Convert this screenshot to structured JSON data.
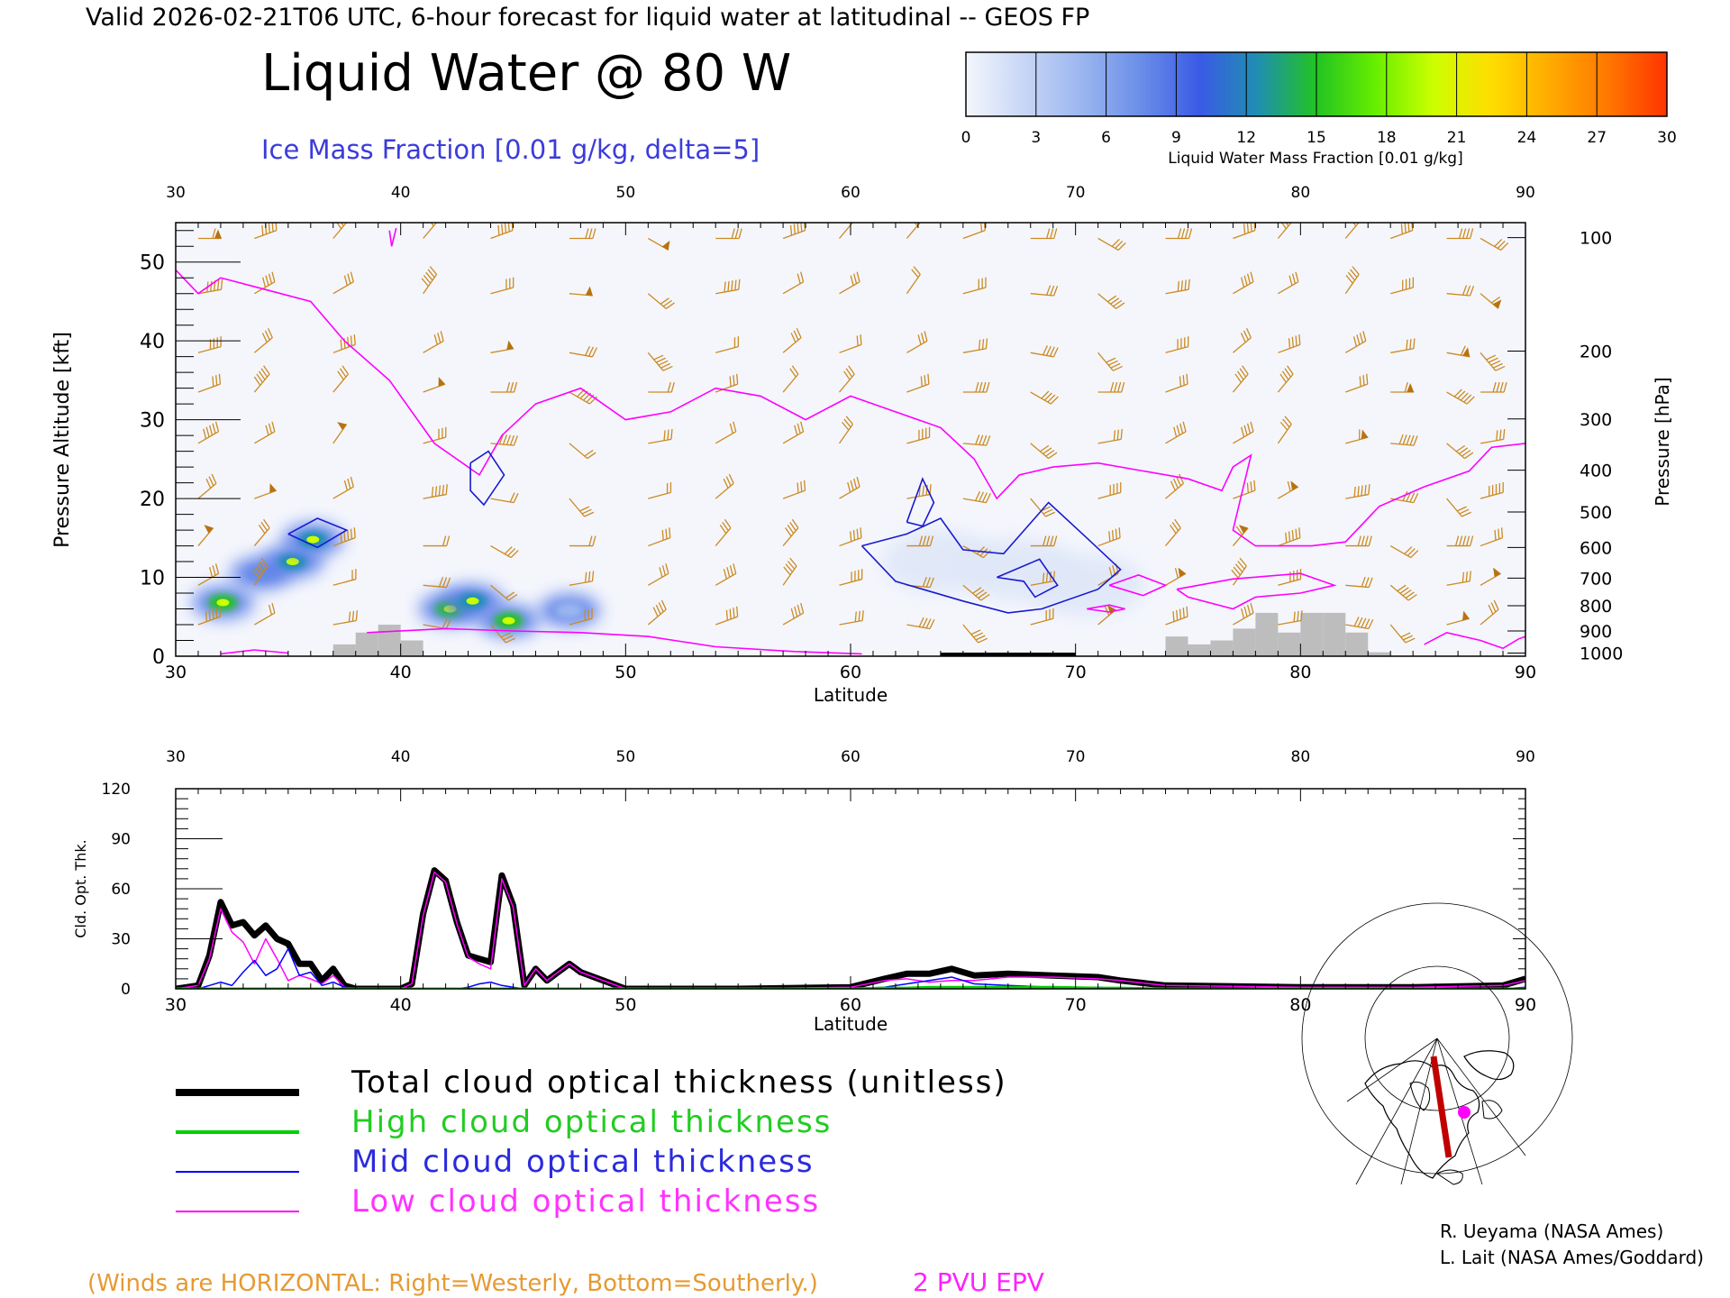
{
  "header": {
    "valid_line": "Valid 2026-02-21T06 UTC, 6-hour forecast for liquid water at latitudinal -- GEOS FP",
    "title": "Liquid Water @ 80 W",
    "subtitle": "Ice Mass Fraction [0.01 g/kg, delta=5]"
  },
  "colorbar": {
    "ticks": [
      "0",
      "3",
      "6",
      "9",
      "12",
      "15",
      "18",
      "21",
      "24",
      "27",
      "30"
    ],
    "label": "Liquid Water Mass Fraction [0.01 g/kg]",
    "colors": [
      "#f4f6fc",
      "#c7d6f6",
      "#9ab5f0",
      "#6a8ee8",
      "#3a5ae6",
      "#1f8fb0",
      "#22c322",
      "#66ee00",
      "#ccff00",
      "#ffdd00",
      "#ffaa00",
      "#ff7700",
      "#ff3300"
    ]
  },
  "chart_data": [
    {
      "type": "heatmap",
      "name": "cross-section",
      "xlabel": "Latitude",
      "ylabel": "Pressure Altitude [kft]",
      "y2label": "Pressure [hPa]",
      "xlim": [
        30,
        90
      ],
      "ylim": [
        0,
        55
      ],
      "x_ticks": [
        "30",
        "40",
        "50",
        "60",
        "70",
        "80",
        "90"
      ],
      "y_ticks": [
        "0",
        "10",
        "20",
        "30",
        "40",
        "50"
      ],
      "pressure_ticks": [
        {
          "label": "100",
          "kft": 53.1
        },
        {
          "label": "200",
          "kft": 38.7
        },
        {
          "label": "300",
          "kft": 30.1
        },
        {
          "label": "400",
          "kft": 23.6
        },
        {
          "label": "500",
          "kft": 18.3
        },
        {
          "label": "600",
          "kft": 13.8
        },
        {
          "label": "700",
          "kft": 9.9
        },
        {
          "label": "800",
          "kft": 6.4
        },
        {
          "label": "900",
          "kft": 3.2
        },
        {
          "label": "1000",
          "kft": 0.4
        }
      ],
      "liquid_water_blobs": [
        {
          "lat": 32.1,
          "kft": 6.8,
          "value": 18
        },
        {
          "lat": 33.8,
          "kft": 10.5,
          "value": 9
        },
        {
          "lat": 35.2,
          "kft": 12.0,
          "value": 16
        },
        {
          "lat": 36.1,
          "kft": 14.8,
          "value": 15
        },
        {
          "lat": 42.2,
          "kft": 6.0,
          "value": 19
        },
        {
          "lat": 43.2,
          "kft": 7.0,
          "value": 15
        },
        {
          "lat": 44.8,
          "kft": 4.5,
          "value": 19
        },
        {
          "lat": 47.5,
          "kft": 5.8,
          "value": 6
        },
        {
          "lat": 64.0,
          "kft": 12.0,
          "value": 3
        },
        {
          "lat": 67.5,
          "kft": 11.0,
          "value": 3
        },
        {
          "lat": 70.5,
          "kft": 9.0,
          "value": 3
        }
      ],
      "ice_contours": [
        [
          [
            35.0,
            15.5
          ],
          [
            36.3,
            17.5
          ],
          [
            37.6,
            16.0
          ],
          [
            36.3,
            13.8
          ],
          [
            35.0,
            15.5
          ]
        ],
        [
          [
            43.1,
            24.5
          ],
          [
            43.9,
            26.0
          ],
          [
            44.6,
            23.0
          ],
          [
            43.7,
            19.2
          ],
          [
            43.1,
            21.0
          ],
          [
            43.1,
            24.5
          ]
        ],
        [
          [
            62.5,
            17.0
          ],
          [
            63.2,
            22.5
          ],
          [
            63.7,
            19.5
          ],
          [
            63.2,
            16.5
          ],
          [
            62.5,
            17.0
          ]
        ],
        [
          [
            60.5,
            14.0
          ],
          [
            62.5,
            15.5
          ],
          [
            64.0,
            17.5
          ],
          [
            65.0,
            13.5
          ],
          [
            66.8,
            13.0
          ],
          [
            68.8,
            19.5
          ],
          [
            70.5,
            15.0
          ],
          [
            72.0,
            11.0
          ],
          [
            71.0,
            8.5
          ],
          [
            68.5,
            6.0
          ],
          [
            67.0,
            5.5
          ],
          [
            65.0,
            7.0
          ],
          [
            62.0,
            9.5
          ],
          [
            60.5,
            14.0
          ]
        ],
        [
          [
            66.5,
            10.0
          ],
          [
            68.4,
            12.3
          ],
          [
            69.2,
            9.0
          ],
          [
            68.2,
            7.5
          ],
          [
            67.7,
            9.5
          ],
          [
            66.5,
            10.0
          ]
        ]
      ],
      "epv_2pvu": [
        [
          [
            30.0,
            49.0
          ],
          [
            31.0,
            46.0
          ],
          [
            32.0,
            48.0
          ],
          [
            34.0,
            46.5
          ],
          [
            36.0,
            45.0
          ],
          [
            37.5,
            40.0
          ],
          [
            39.5,
            35.0
          ],
          [
            41.5,
            27.0
          ],
          [
            42.5,
            25.0
          ],
          [
            43.5,
            23.0
          ],
          [
            44.5,
            28.0
          ],
          [
            46.0,
            32.0
          ],
          [
            48.0,
            34.0
          ],
          [
            50.0,
            30.0
          ],
          [
            52.0,
            31.0
          ],
          [
            54.0,
            34.0
          ],
          [
            56.0,
            33.0
          ],
          [
            58.0,
            30.0
          ],
          [
            60.0,
            33.0
          ],
          [
            62.0,
            31.0
          ],
          [
            64.0,
            29.0
          ],
          [
            65.5,
            25.0
          ],
          [
            66.5,
            20.0
          ],
          [
            67.5,
            23.0
          ],
          [
            69.0,
            24.0
          ],
          [
            71.0,
            24.5
          ],
          [
            73.0,
            23.5
          ],
          [
            75.0,
            22.5
          ],
          [
            76.5,
            21.0
          ],
          [
            77.0,
            24.0
          ],
          [
            77.8,
            25.5
          ],
          [
            77.0,
            16.0
          ],
          [
            78.0,
            14.0
          ],
          [
            80.5,
            14.0
          ],
          [
            82.0,
            14.5
          ],
          [
            83.5,
            19.0
          ],
          [
            85.5,
            21.5
          ],
          [
            87.5,
            23.5
          ],
          [
            88.5,
            26.5
          ],
          [
            90.0,
            27.0
          ]
        ],
        [
          [
            39.5,
            54.0
          ],
          [
            39.6,
            52.0
          ],
          [
            39.8,
            54.3
          ]
        ],
        [
          [
            71.5,
            9.0
          ],
          [
            72.8,
            10.3
          ],
          [
            74.0,
            9.0
          ],
          [
            73.0,
            7.7
          ],
          [
            71.5,
            9.0
          ]
        ],
        [
          [
            74.5,
            8.5
          ],
          [
            77.0,
            9.8
          ],
          [
            80.0,
            10.5
          ],
          [
            81.5,
            9.0
          ],
          [
            80.0,
            8.0
          ],
          [
            78.0,
            7.5
          ],
          [
            77.0,
            6.0
          ],
          [
            75.0,
            7.5
          ],
          [
            74.5,
            8.5
          ]
        ],
        [
          [
            38.5,
            3.0
          ],
          [
            42.0,
            3.5
          ],
          [
            45.0,
            3.2
          ],
          [
            48.0,
            3.0
          ],
          [
            51.0,
            2.5
          ],
          [
            54.0,
            1.2
          ],
          [
            57.5,
            0.6
          ],
          [
            60.5,
            0.3
          ]
        ],
        [
          [
            32.0,
            0.3
          ],
          [
            33.5,
            0.8
          ],
          [
            35.0,
            0.4
          ]
        ],
        [
          [
            70.5,
            6.0
          ],
          [
            71.5,
            6.5
          ],
          [
            72.2,
            6.0
          ],
          [
            71.5,
            5.6
          ],
          [
            70.5,
            6.0
          ]
        ],
        [
          [
            85.5,
            1.5
          ],
          [
            86.5,
            3.0
          ],
          [
            88.0,
            2.0
          ],
          [
            89.0,
            1.0
          ],
          [
            89.7,
            2.2
          ],
          [
            90.0,
            2.5
          ]
        ]
      ],
      "terrain_lat": [
        37,
        38,
        39,
        40,
        74,
        75,
        76,
        77,
        78,
        79,
        80,
        81,
        82,
        83
      ],
      "terrain_kft": [
        1.5,
        3.0,
        4.0,
        2.0,
        2.5,
        1.5,
        2.0,
        3.5,
        5.5,
        3.0,
        5.5,
        5.5,
        3.0,
        0.5
      ],
      "wind_columns_lat": [
        31,
        33.5,
        37,
        41,
        44,
        47.5,
        51,
        54,
        57,
        59.5,
        62.5,
        65,
        68,
        71,
        74,
        77,
        79,
        82,
        84,
        86.5,
        88
      ],
      "wind_levels_kft": [
        53,
        46,
        38.5,
        33.5,
        27,
        20,
        14,
        9,
        4
      ],
      "wind_speeds_kt": [
        55,
        45,
        35,
        25,
        45,
        25,
        50,
        30,
        45,
        20,
        30,
        20,
        30,
        25,
        35,
        35,
        40,
        30,
        40,
        35,
        25
      ],
      "wind_dirs_deg": [
        270,
        260,
        255,
        250,
        240,
        230,
        220,
        240,
        250,
        220,
        215,
        240,
        250,
        255,
        260,
        270,
        275,
        280,
        300,
        310,
        320
      ]
    },
    {
      "type": "line",
      "name": "cloud-optical-thickness",
      "xlabel": "Latitude",
      "ylabel": "Cld. Opt. Thk.",
      "xlim": [
        30,
        90
      ],
      "ylim": [
        0,
        120
      ],
      "x_ticks": [
        "30",
        "40",
        "50",
        "60",
        "70",
        "80",
        "90"
      ],
      "y_ticks": [
        "0",
        "30",
        "60",
        "90",
        "120"
      ],
      "x": [
        30,
        31,
        31.5,
        32,
        32.5,
        33,
        33.5,
        34,
        34.5,
        35,
        35.5,
        36,
        36.5,
        37,
        37.5,
        38,
        40,
        40.5,
        41,
        41.5,
        42,
        42.5,
        43,
        43.5,
        44,
        44.5,
        45,
        45.5,
        46,
        46.5,
        47,
        47.5,
        48,
        50,
        55,
        60,
        61.5,
        62.5,
        63.5,
        64.5,
        65.5,
        67,
        69,
        71,
        72,
        74,
        80,
        85,
        89,
        90
      ],
      "series": [
        {
          "name": "Total cloud optical thickness (unitless)",
          "color": "#000000",
          "values": [
            0,
            2,
            20,
            52,
            38,
            40,
            32,
            38,
            30,
            27,
            15,
            15,
            5,
            12,
            2,
            0,
            0,
            3,
            45,
            71,
            65,
            40,
            20,
            18,
            16,
            68,
            50,
            2,
            12,
            5,
            10,
            15,
            10,
            0,
            0,
            1,
            6,
            9,
            9,
            12,
            8,
            9,
            8,
            7,
            5,
            2,
            1,
            1,
            2,
            6
          ]
        },
        {
          "name": "High cloud optical thickness",
          "color": "#00d000",
          "values": [
            0,
            0,
            0,
            0,
            0,
            0,
            0,
            0,
            0,
            0,
            0,
            0,
            0,
            0,
            0,
            0,
            0,
            0,
            0,
            0,
            0,
            0,
            0,
            0,
            0,
            0,
            0,
            0,
            0,
            0,
            0,
            0,
            0,
            0,
            0,
            0,
            0.5,
            0.5,
            1,
            1,
            1,
            1,
            1,
            0.5,
            0.5,
            0,
            0,
            0,
            0,
            0
          ]
        },
        {
          "name": "Mid cloud optical thickness",
          "color": "#0000ff",
          "values": [
            0,
            0,
            2,
            4,
            2,
            10,
            17,
            8,
            12,
            24,
            8,
            10,
            2,
            4,
            1,
            0,
            0,
            0,
            0,
            0,
            0,
            0,
            1,
            3,
            4,
            2,
            1,
            0,
            0,
            0,
            0,
            0,
            0,
            0,
            0,
            0,
            1,
            3,
            5,
            7,
            3,
            2,
            1,
            1,
            0,
            0,
            0,
            0,
            0,
            1
          ]
        },
        {
          "name": "Low cloud optical thickness",
          "color": "#ff00ff",
          "values": [
            0,
            2,
            18,
            48,
            34,
            28,
            15,
            30,
            18,
            5,
            8,
            6,
            3,
            8,
            1,
            0,
            0,
            3,
            44,
            70,
            64,
            39,
            19,
            15,
            12,
            66,
            49,
            2,
            12,
            5,
            10,
            15,
            10,
            0,
            0,
            1,
            5,
            6,
            4,
            5,
            5,
            7,
            7,
            6,
            5,
            2,
            1,
            1,
            2,
            5
          ]
        }
      ]
    }
  ],
  "legend": {
    "total": "Total cloud optical thickness (unitless)",
    "high": "High cloud optical thickness",
    "mid": "Mid cloud optical thickness",
    "low": "Low cloud optical thickness"
  },
  "footer": {
    "winds_note": "(Winds are HORIZONTAL: Right=Westerly, Bottom=Southerly.)",
    "epv_label": "2 PVU EPV",
    "credit1": "R. Ueyama (NASA Ames)",
    "credit2": "L. Lait (NASA Ames/Goddard)"
  },
  "inset_map": {
    "marker_color": "#ff00ff",
    "track_color": "#c00000"
  }
}
